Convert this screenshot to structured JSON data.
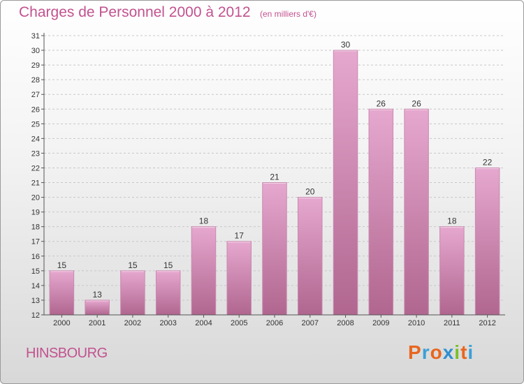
{
  "header": {
    "title": "Charges de Personnel 2000 à 2012",
    "subtitle": "(en milliers d'€)"
  },
  "footer": {
    "commune": "HINSBOURG",
    "brand_letters": [
      "P",
      "r",
      "o",
      "x",
      "i",
      "t",
      "i"
    ],
    "brand_colors": [
      "#e8661f",
      "#3aa0d8",
      "#e8661f",
      "#2f8fd0",
      "#7bbf2a",
      "#e8661f",
      "#3aa0d8"
    ]
  },
  "colors": {
    "bar_top": "#e6a8cf",
    "bar_bottom": "#b0668f",
    "bar_edge": "#c98ab0",
    "grid": "#c7c7c7",
    "axis": "#555555"
  },
  "chart_data": {
    "type": "bar",
    "title": "Charges de Personnel 2000 à 2012",
    "subtitle": "(en milliers d'€)",
    "xlabel": "",
    "ylabel": "",
    "categories": [
      "2000",
      "2001",
      "2002",
      "2003",
      "2004",
      "2005",
      "2006",
      "2007",
      "2008",
      "2009",
      "2010",
      "2011",
      "2012"
    ],
    "values": [
      15,
      13,
      15,
      15,
      18,
      17,
      21,
      20,
      30,
      26,
      26,
      18,
      22
    ],
    "ylim": [
      12,
      31
    ],
    "yticks": [
      12,
      13,
      14,
      15,
      16,
      17,
      18,
      19,
      20,
      21,
      22,
      23,
      24,
      25,
      26,
      27,
      28,
      29,
      30,
      31
    ],
    "grid": true,
    "data_labels": true
  }
}
